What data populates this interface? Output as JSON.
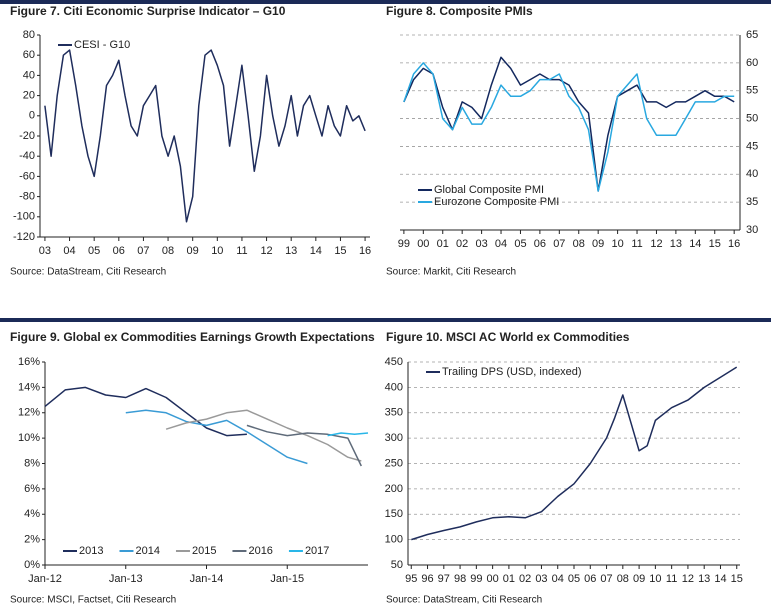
{
  "chart_data": [
    {
      "type": "line",
      "title": "Figure 7. Citi Economic Surprise Indicator – G10",
      "source": "Source: DataStream, Citi Research",
      "x": [
        2003,
        2003.25,
        2003.5,
        2003.75,
        2004,
        2004.25,
        2004.5,
        2004.75,
        2005,
        2005.25,
        2005.5,
        2005.75,
        2006,
        2006.25,
        2006.5,
        2006.75,
        2007,
        2007.25,
        2007.5,
        2007.75,
        2008,
        2008.25,
        2008.5,
        2008.75,
        2009,
        2009.25,
        2009.5,
        2009.75,
        2010,
        2010.25,
        2010.5,
        2010.75,
        2011,
        2011.25,
        2011.5,
        2011.75,
        2012,
        2012.25,
        2012.5,
        2012.75,
        2013,
        2013.25,
        2013.5,
        2013.75,
        2014,
        2014.25,
        2014.5,
        2014.75,
        2015,
        2015.25,
        2015.5,
        2015.75,
        2016
      ],
      "series": [
        {
          "name": "CESI - G10",
          "color": "#1f2d5c",
          "values": [
            10,
            -40,
            20,
            60,
            65,
            30,
            -10,
            -40,
            -60,
            -20,
            30,
            40,
            55,
            20,
            -10,
            -20,
            10,
            20,
            30,
            -20,
            -40,
            -20,
            -50,
            -105,
            -80,
            10,
            60,
            65,
            50,
            30,
            -30,
            10,
            50,
            0,
            -55,
            -20,
            40,
            0,
            -30,
            -10,
            20,
            -20,
            10,
            20,
            0,
            -20,
            10,
            -10,
            -20,
            10,
            -5,
            0,
            -15
          ]
        }
      ],
      "xlim": [
        2002.8,
        2016.2
      ],
      "xticks": [
        {
          "value": 2003,
          "label": "03"
        },
        {
          "value": 2004,
          "label": "04"
        },
        {
          "value": 2005,
          "label": "05"
        },
        {
          "value": 2006,
          "label": "06"
        },
        {
          "value": 2007,
          "label": "07"
        },
        {
          "value": 2008,
          "label": "08"
        },
        {
          "value": 2009,
          "label": "09"
        },
        {
          "value": 2010,
          "label": "10"
        },
        {
          "value": 2011,
          "label": "11"
        },
        {
          "value": 2012,
          "label": "12"
        },
        {
          "value": 2013,
          "label": "13"
        },
        {
          "value": 2014,
          "label": "14"
        },
        {
          "value": 2015,
          "label": "15"
        },
        {
          "value": 2016,
          "label": "16"
        }
      ],
      "ylim": [
        -120,
        80
      ],
      "yticks": [
        -120,
        -100,
        -80,
        -60,
        -40,
        -20,
        0,
        20,
        40,
        60,
        80
      ],
      "grid": false,
      "y_axis_side": "left",
      "legend": "upper left",
      "legend_orientation": "vertical"
    },
    {
      "type": "line",
      "title": "Figure 8. Composite PMIs",
      "source": "Source: Markit, Citi Research",
      "x": [
        1999,
        1999.5,
        2000,
        2000.5,
        2001,
        2001.5,
        2002,
        2002.5,
        2003,
        2003.5,
        2004,
        2004.5,
        2005,
        2005.5,
        2006,
        2006.5,
        2007,
        2007.5,
        2008,
        2008.5,
        2009,
        2009.5,
        2010,
        2010.5,
        2011,
        2011.5,
        2012,
        2012.5,
        2013,
        2013.5,
        2014,
        2014.5,
        2015,
        2015.5,
        2016
      ],
      "series": [
        {
          "name": "Global Composite PMI",
          "color": "#13285e",
          "values": [
            53,
            57,
            59,
            58,
            52,
            48,
            53,
            52,
            50,
            56,
            61,
            59,
            56,
            57,
            58,
            57,
            57,
            56,
            53,
            51,
            37,
            47,
            54,
            55,
            56,
            53,
            53,
            52,
            53,
            53,
            54,
            55,
            54,
            54,
            53
          ]
        },
        {
          "name": "Eurozone Composite PMI",
          "color": "#29a8e0",
          "values": [
            53,
            58,
            60,
            58,
            50,
            48,
            52,
            49,
            49,
            52,
            56,
            54,
            54,
            55,
            57,
            57,
            58,
            54,
            52,
            48,
            37,
            44,
            54,
            56,
            58,
            50,
            47,
            47,
            47,
            50,
            53,
            53,
            53,
            54,
            54
          ]
        }
      ],
      "xlim": [
        1998.8,
        2016.3
      ],
      "xticks": [
        {
          "value": 1999,
          "label": "99"
        },
        {
          "value": 2000,
          "label": "00"
        },
        {
          "value": 2001,
          "label": "01"
        },
        {
          "value": 2002,
          "label": "02"
        },
        {
          "value": 2003,
          "label": "03"
        },
        {
          "value": 2004,
          "label": "04"
        },
        {
          "value": 2005,
          "label": "05"
        },
        {
          "value": 2006,
          "label": "06"
        },
        {
          "value": 2007,
          "label": "07"
        },
        {
          "value": 2008,
          "label": "08"
        },
        {
          "value": 2009,
          "label": "09"
        },
        {
          "value": 2010,
          "label": "10"
        },
        {
          "value": 2011,
          "label": "11"
        },
        {
          "value": 2012,
          "label": "12"
        },
        {
          "value": 2013,
          "label": "13"
        },
        {
          "value": 2014,
          "label": "14"
        },
        {
          "value": 2015,
          "label": "15"
        },
        {
          "value": 2016,
          "label": "16"
        }
      ],
      "ylim": [
        30,
        65
      ],
      "yticks": [
        30,
        35,
        40,
        45,
        50,
        55,
        60,
        65
      ],
      "grid": true,
      "y_axis_side": "right",
      "legend": "lower left",
      "legend_orientation": "vertical"
    },
    {
      "type": "line",
      "title": "Figure 9. Global ex Commodities Earnings Growth Expectations",
      "source": "Source: MSCI, Factset, Citi Research",
      "series": [
        {
          "name": "2013",
          "color": "#1f2d5c",
          "x": [
            0,
            3,
            6,
            9,
            12,
            15,
            18,
            21,
            24,
            27,
            30
          ],
          "values": [
            12.5,
            13.8,
            14,
            13.4,
            13.2,
            13.9,
            13.2,
            12,
            10.8,
            10.2,
            10.3
          ]
        },
        {
          "name": "2014",
          "color": "#3a9bd5",
          "x": [
            12,
            15,
            18,
            21,
            24,
            27,
            30,
            33,
            36,
            39
          ],
          "values": [
            12,
            12.2,
            12,
            11.3,
            11,
            11.4,
            10.5,
            9.5,
            8.5,
            8
          ]
        },
        {
          "name": "2015",
          "color": "#9a9a9a",
          "x": [
            18,
            21,
            24,
            27,
            30,
            33,
            36,
            39,
            42,
            45,
            47
          ],
          "values": [
            10.7,
            11.2,
            11.5,
            12,
            12.2,
            11.5,
            10.8,
            10.2,
            9.5,
            8.5,
            8.2
          ]
        },
        {
          "name": "2016",
          "color": "#5f6b7a",
          "x": [
            30,
            33,
            36,
            39,
            42,
            45,
            47
          ],
          "values": [
            11,
            10.5,
            10.2,
            10.4,
            10.3,
            10,
            7.8
          ]
        },
        {
          "name": "2017",
          "color": "#29b6e8",
          "x": [
            42,
            44,
            46,
            48
          ],
          "values": [
            10.2,
            10.4,
            10.3,
            10.4
          ]
        }
      ],
      "xlim": [
        0,
        48
      ],
      "xticks": [
        {
          "value": 0,
          "label": "Jan-12"
        },
        {
          "value": 12,
          "label": "Jan-13"
        },
        {
          "value": 24,
          "label": "Jan-14"
        },
        {
          "value": 36,
          "label": "Jan-15"
        }
      ],
      "ylim": [
        0,
        16
      ],
      "yticks": [
        {
          "value": 0,
          "label": "0%"
        },
        {
          "value": 2,
          "label": "2%"
        },
        {
          "value": 4,
          "label": "4%"
        },
        {
          "value": 6,
          "label": "6%"
        },
        {
          "value": 8,
          "label": "8%"
        },
        {
          "value": 10,
          "label": "10%"
        },
        {
          "value": 12,
          "label": "12%"
        },
        {
          "value": 14,
          "label": "14%"
        },
        {
          "value": 16,
          "label": "16%"
        }
      ],
      "grid": false,
      "y_axis_side": "left",
      "legend": "lower left",
      "legend_orientation": "horizontal"
    },
    {
      "type": "line",
      "title": "Figure 10. MSCI AC World ex Commodities",
      "source": "Source: DataStream, Citi Research",
      "x": [
        1995,
        1996,
        1997,
        1998,
        1999,
        2000,
        2001,
        2002,
        2003,
        2004,
        2005,
        2006,
        2007,
        2007.5,
        2008,
        2008.5,
        2009,
        2009.5,
        2010,
        2011,
        2012,
        2013,
        2014,
        2015
      ],
      "series": [
        {
          "name": "Trailing DPS (USD, indexed)",
          "color": "#1f2d5c",
          "values": [
            100,
            110,
            118,
            125,
            135,
            143,
            145,
            143,
            155,
            185,
            210,
            250,
            300,
            340,
            385,
            330,
            275,
            285,
            335,
            360,
            375,
            400,
            420,
            440
          ]
        }
      ],
      "xlim": [
        1994.8,
        2015.2
      ],
      "xticks": [
        {
          "value": 1995,
          "label": "95"
        },
        {
          "value": 1996,
          "label": "96"
        },
        {
          "value": 1997,
          "label": "97"
        },
        {
          "value": 1998,
          "label": "98"
        },
        {
          "value": 1999,
          "label": "99"
        },
        {
          "value": 2000,
          "label": "00"
        },
        {
          "value": 2001,
          "label": "01"
        },
        {
          "value": 2002,
          "label": "02"
        },
        {
          "value": 2003,
          "label": "03"
        },
        {
          "value": 2004,
          "label": "04"
        },
        {
          "value": 2005,
          "label": "05"
        },
        {
          "value": 2006,
          "label": "06"
        },
        {
          "value": 2007,
          "label": "07"
        },
        {
          "value": 2008,
          "label": "08"
        },
        {
          "value": 2009,
          "label": "09"
        },
        {
          "value": 2010,
          "label": "10"
        },
        {
          "value": 2011,
          "label": "11"
        },
        {
          "value": 2012,
          "label": "12"
        },
        {
          "value": 2013,
          "label": "13"
        },
        {
          "value": 2014,
          "label": "14"
        },
        {
          "value": 2015,
          "label": "15"
        }
      ],
      "ylim": [
        50,
        450
      ],
      "yticks": [
        50,
        100,
        150,
        200,
        250,
        300,
        350,
        400,
        450
      ],
      "grid": true,
      "y_axis_side": "left",
      "legend": "upper left",
      "legend_orientation": "vertical"
    }
  ]
}
